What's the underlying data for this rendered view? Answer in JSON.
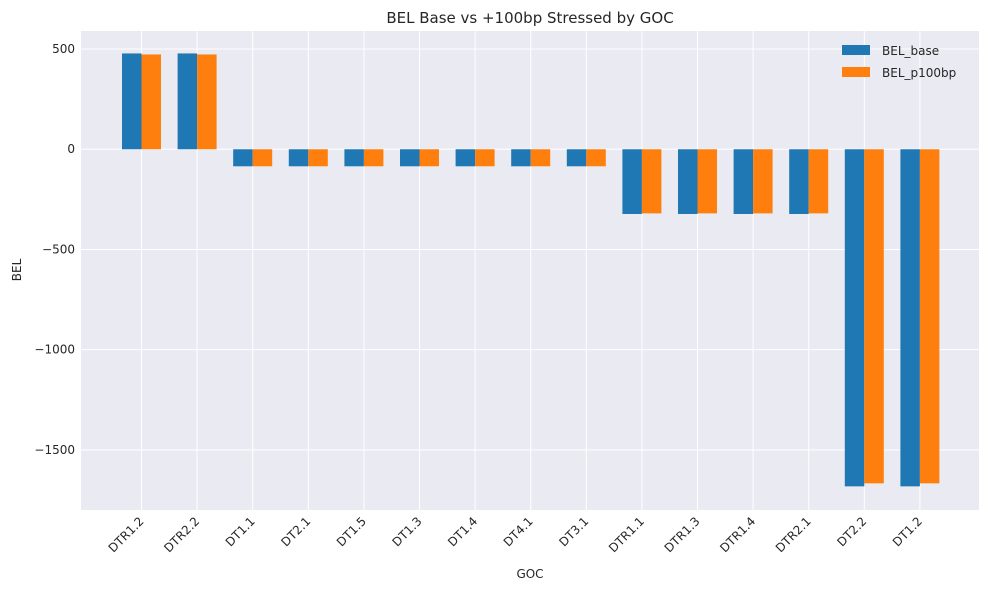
{
  "chart_data": {
    "type": "bar",
    "title": "BEL Base vs +100bp Stressed by GOC",
    "xlabel": "GOC",
    "ylabel": "BEL",
    "categories": [
      "DTR1.2",
      "DTR2.2",
      "DT1.1",
      "DT2.1",
      "DT1.5",
      "DT1.3",
      "DT1.4",
      "DT4.1",
      "DT3.1",
      "DTR1.1",
      "DTR1.3",
      "DTR1.4",
      "DTR2.1",
      "DT2.2",
      "DT1.2"
    ],
    "series": [
      {
        "name": "BEL_base",
        "color": "#1f77b4",
        "values": [
          478,
          478,
          -85,
          -85,
          -85,
          -85,
          -85,
          -85,
          -85,
          -323,
          -323,
          -323,
          -323,
          -1682,
          -1682
        ]
      },
      {
        "name": "BEL_p100bp",
        "color": "#ff7f0e",
        "values": [
          473,
          473,
          -85,
          -85,
          -85,
          -85,
          -85,
          -85,
          -85,
          -320,
          -320,
          -320,
          -320,
          -1667,
          -1667
        ]
      }
    ],
    "ylim": [
      -1800,
      590
    ],
    "yticks": [
      500,
      0,
      -500,
      -1000,
      -1500
    ],
    "ytick_labels": [
      "500",
      "0",
      "−500",
      "−1000",
      "−1500"
    ],
    "grid": true,
    "legend_position": "top-right"
  }
}
